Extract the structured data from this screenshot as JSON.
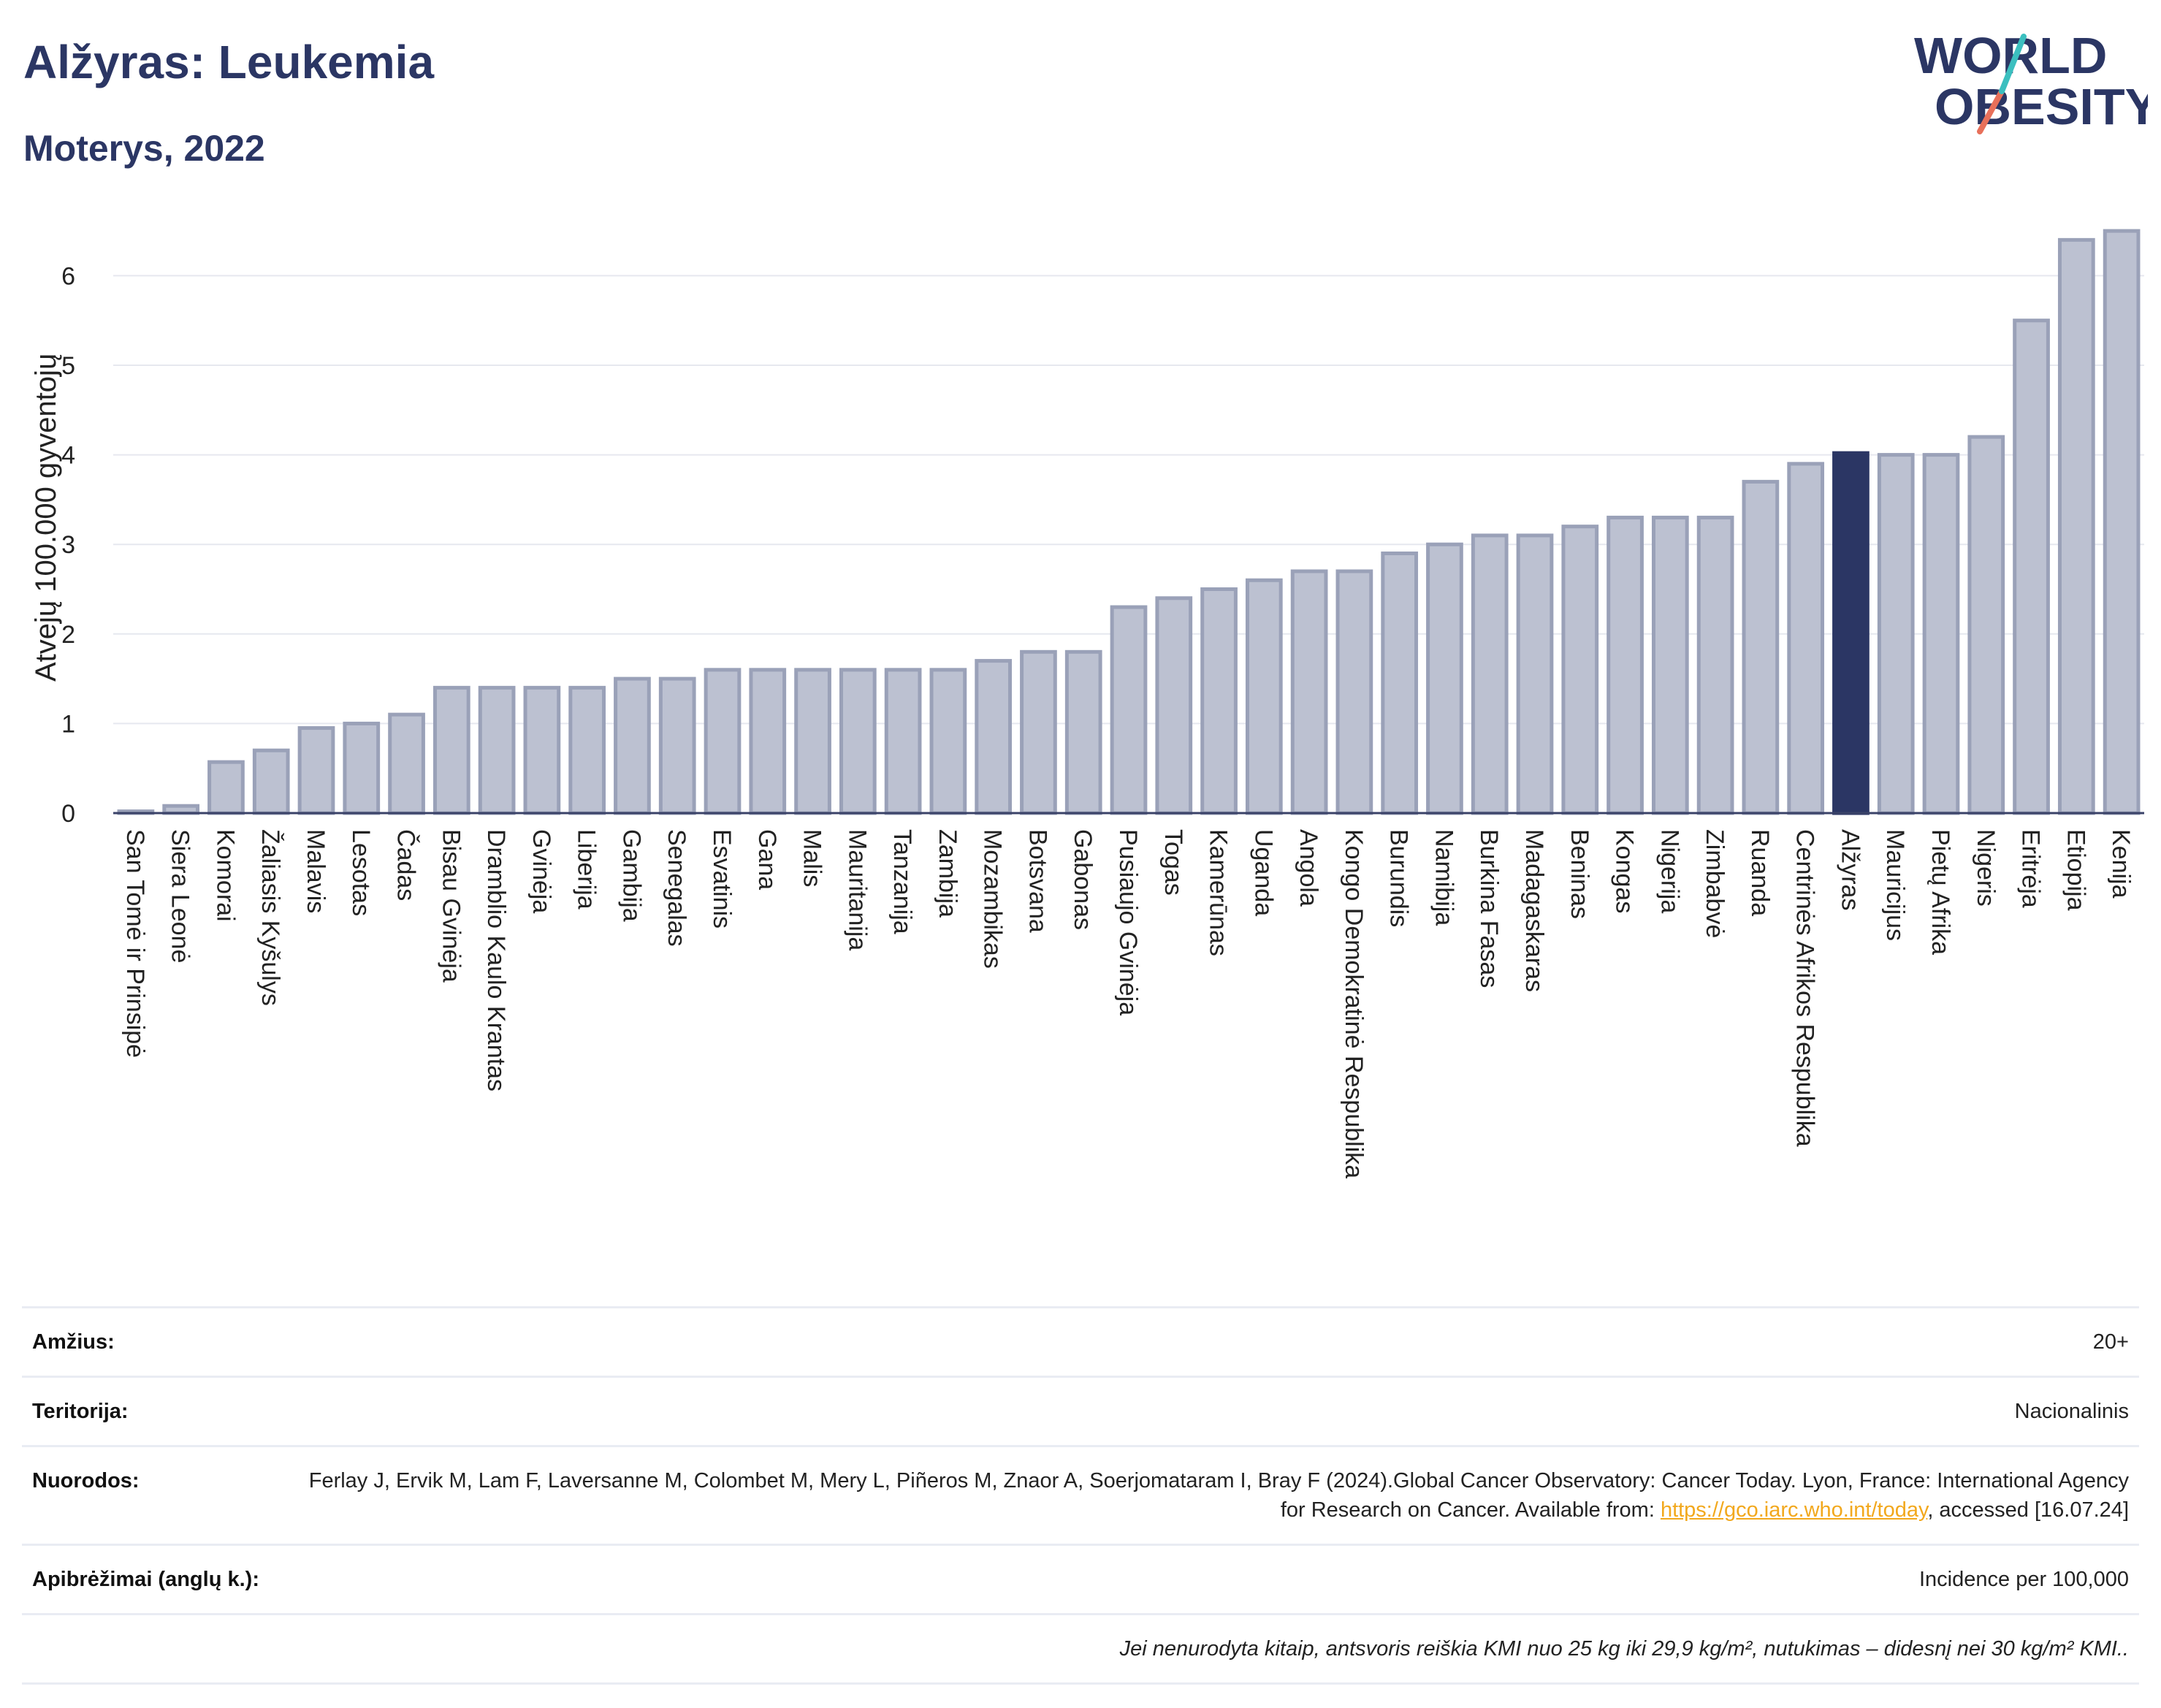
{
  "header": {
    "title": "Alžyras: Leukemia",
    "subtitle": "Moterys, 2022"
  },
  "logo": {
    "line1": "WORLD",
    "line2": "OBESITY",
    "accent_teal": "#3bbfbf",
    "accent_coral": "#e8705a",
    "text_color": "#2b3664"
  },
  "chart_data": {
    "type": "bar",
    "ylabel": "Atvejų 100.000 gyventojų",
    "ylim": [
      0,
      6.8
    ],
    "yticks": [
      0,
      1,
      2,
      3,
      4,
      5,
      6
    ],
    "grid": true,
    "bar_color": "#bcc1d1",
    "bar_edge_color": "#9aa1b8",
    "highlight_color": "#2b3664",
    "highlight_category": "Alžyras",
    "categories": [
      "San Tomė ir Prinsipė",
      "Siera Leonė",
      "Komorai",
      "Žaliasis Kyšulys",
      "Malavis",
      "Lesotas",
      "Čadas",
      "Bisau Gvinėja",
      "Dramblio Kaulo Krantas",
      "Gvinėja",
      "Liberija",
      "Gambija",
      "Senegalas",
      "Esvatinis",
      "Gana",
      "Malis",
      "Mauritanija",
      "Tanzanija",
      "Zambija",
      "Mozambikas",
      "Botsvana",
      "Gabonas",
      "Pusiaujo Gvinėja",
      "Togas",
      "Kamerūnas",
      "Uganda",
      "Angola",
      "Kongo Demokratinė Respublika",
      "Burundis",
      "Namibija",
      "Burkina Fasas",
      "Madagaskaras",
      "Beninas",
      "Kongas",
      "Nigerija",
      "Zimbabvė",
      "Ruanda",
      "Centrinės Afrikos Respublika",
      "Alžyras",
      "Mauricijus",
      "Pietų Afrika",
      "Nigeris",
      "Eritrėja",
      "Etiopija",
      "Kenija"
    ],
    "values": [
      0.02,
      0.08,
      0.57,
      0.7,
      0.95,
      1.0,
      1.1,
      1.4,
      1.4,
      1.4,
      1.4,
      1.5,
      1.5,
      1.6,
      1.6,
      1.6,
      1.6,
      1.6,
      1.6,
      1.7,
      1.8,
      1.8,
      2.3,
      2.4,
      2.5,
      2.6,
      2.7,
      2.7,
      2.9,
      3.0,
      3.1,
      3.1,
      3.2,
      3.3,
      3.3,
      3.3,
      3.7,
      3.9,
      4.02,
      4.0,
      4.0,
      4.2,
      5.5,
      6.4,
      6.5
    ]
  },
  "info": {
    "age_label": "Amžius:",
    "age_value": "20+",
    "territory_label": "Teritorija:",
    "territory_value": "Nacionalinis",
    "refs_label": "Nuorodos:",
    "refs_text": "Ferlay J, Ervik M, Lam F, Laversanne M, Colombet M, Mery L, Piñeros M, Znaor A, Soerjomataram I, Bray F (2024).Global Cancer Observatory: Cancer Today. Lyon, France: International Agency for Research on Cancer. Available from: ",
    "refs_link": "https://gco.iarc.who.int/today",
    "refs_tail": ", accessed [16.07.24]",
    "defs_label": "Apibrėžimai (anglų k.):",
    "defs_value": "Incidence per 100,000",
    "note": "Jei nenurodyta kitaip, antsvoris reiškia KMI nuo 25 kg iki 29,9 kg/m², nutukimas – didesnį nei 30 kg/m² KMI.."
  }
}
